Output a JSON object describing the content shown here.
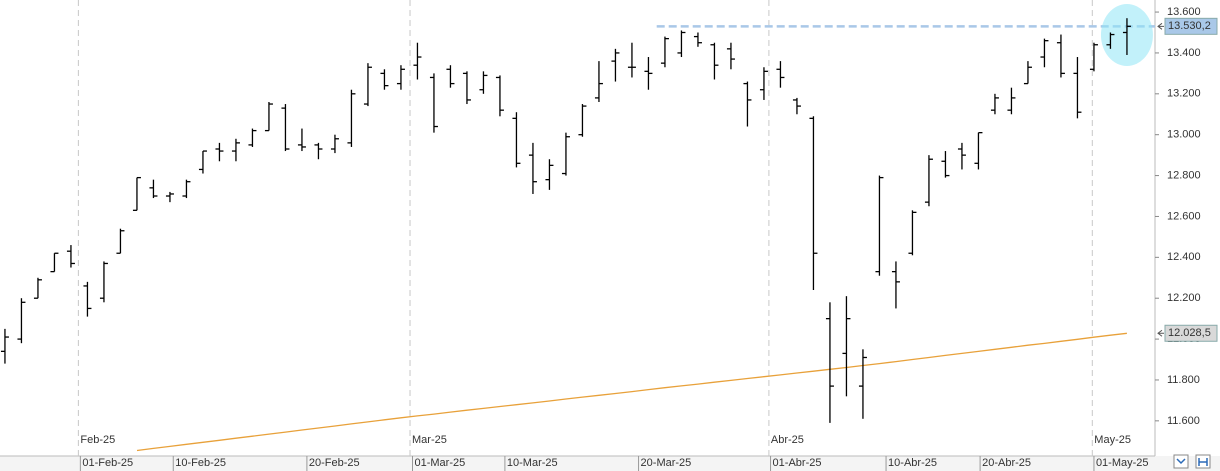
{
  "chart_data": {
    "type": "ohlc",
    "open": [
      11940,
      12000,
      12200,
      12330,
      12430,
      12260,
      12200,
      12420,
      12630,
      12740,
      12700,
      12700,
      12830,
      12930,
      12920,
      12950,
      13020,
      13130,
      12950,
      12950,
      12930,
      12960,
      13150,
      13300,
      13250,
      13340,
      13280,
      13320,
      13300,
      13220,
      13280,
      13080,
      12900,
      12780,
      12810,
      13000,
      13180,
      13360,
      13330,
      13310,
      13350,
      13400,
      13480,
      13440,
      13420,
      13250,
      13220,
      13320,
      13170,
      13080,
      12100,
      11930,
      11770,
      12330,
      12330,
      12420,
      12670,
      12870,
      12930,
      12860,
      13120,
      13120,
      13250,
      13380,
      13450,
      13300,
      13320,
      13440,
      13500
    ],
    "high": [
      12050,
      12200,
      12300,
      12420,
      12460,
      12280,
      12380,
      12540,
      12790,
      12780,
      12720,
      12780,
      12920,
      12960,
      12980,
      13030,
      13160,
      13150,
      13030,
      12960,
      13000,
      13220,
      13350,
      13320,
      13340,
      13450,
      13300,
      13340,
      13310,
      13310,
      13290,
      13110,
      12960,
      12880,
      13010,
      13150,
      13360,
      13420,
      13450,
      13380,
      13480,
      13510,
      13500,
      13450,
      13450,
      13260,
      13330,
      13360,
      13180,
      13090,
      12180,
      12210,
      11950,
      12800,
      12380,
      12630,
      12900,
      12920,
      12960,
      13010,
      13200,
      13230,
      13360,
      13470,
      13490,
      13380,
      13450,
      13500,
      13570
    ],
    "low": [
      11880,
      11980,
      12200,
      12330,
      12350,
      12110,
      12180,
      12420,
      12630,
      12690,
      12670,
      12690,
      12810,
      12870,
      12870,
      12940,
      13020,
      12920,
      12920,
      12880,
      12910,
      12940,
      13140,
      13220,
      13220,
      13270,
      13010,
      13230,
      13150,
      13200,
      13090,
      12840,
      12710,
      12730,
      12800,
      12990,
      13160,
      13260,
      13280,
      13220,
      13330,
      13380,
      13430,
      13270,
      13320,
      13040,
      13170,
      13230,
      13100,
      12240,
      11590,
      11720,
      11610,
      12310,
      12150,
      12410,
      12650,
      12790,
      12830,
      12830,
      13100,
      13100,
      13250,
      13330,
      13280,
      13080,
      13310,
      13420,
      13390
    ],
    "close": [
      12010,
      12180,
      12290,
      12420,
      12370,
      12150,
      12370,
      12530,
      12790,
      12700,
      12710,
      12770,
      12920,
      12920,
      12960,
      13020,
      13150,
      12930,
      12940,
      12930,
      12980,
      13200,
      13330,
      13240,
      13320,
      13380,
      13040,
      13250,
      13170,
      13290,
      13120,
      12860,
      12770,
      12850,
      12990,
      13140,
      13250,
      13400,
      13330,
      13300,
      13470,
      13500,
      13450,
      13340,
      13370,
      13170,
      13310,
      13280,
      13140,
      12420,
      11770,
      12100,
      11910,
      12790,
      12280,
      12620,
      12880,
      12800,
      12900,
      13010,
      13180,
      13180,
      13330,
      13460,
      13300,
      13110,
      13440,
      13490,
      13530.2
    ],
    "color": "#000000",
    "ma": {
      "color": "#e8a13a",
      "values": [
        null,
        null,
        null,
        null,
        null,
        null,
        null,
        null,
        11455,
        11465,
        11475,
        11485,
        11495,
        11505,
        11515,
        11525,
        11535,
        11545,
        11555,
        11565,
        11575,
        11585,
        11595,
        11605,
        11615,
        11624,
        11633,
        11643,
        11652,
        11661,
        11670,
        11679,
        11688,
        11697,
        11707,
        11716,
        11725,
        11734,
        11743,
        11753,
        11762,
        11771,
        11780,
        11789,
        11798,
        11807,
        11816,
        11825,
        11834,
        11843,
        11852,
        11861,
        11871,
        11880,
        11890,
        11900,
        11910,
        11920,
        11930,
        11940,
        11950,
        11960,
        11970,
        11979,
        11989,
        11999,
        12009,
        12019,
        12028.5
      ]
    },
    "xlim": [
      -0.3,
      69.7
    ],
    "xticks": [
      {
        "value": 4.57,
        "label": "01-Feb-25"
      },
      {
        "value": 10.2,
        "label": "10-Feb-25"
      },
      {
        "value": 18.3,
        "label": "20-Feb-25"
      },
      {
        "value": 24.7,
        "label": "01-Mar-25"
      },
      {
        "value": 30.3,
        "label": "10-Mar-25"
      },
      {
        "value": 38.4,
        "label": "20-Mar-25"
      },
      {
        "value": 46.4,
        "label": "01-Abr-25"
      },
      {
        "value": 53.4,
        "label": "10-Abr-25"
      },
      {
        "value": 59.1,
        "label": "20-Abr-25"
      },
      {
        "value": 66.0,
        "label": "01-May-25"
      }
    ],
    "month_ticks": [
      {
        "value": 4.45,
        "label": "Feb-25"
      },
      {
        "value": 24.55,
        "label": "Mar-25"
      },
      {
        "value": 46.3,
        "label": "Abr-25"
      },
      {
        "value": 65.9,
        "label": "May-25"
      }
    ],
    "ylim": [
      11428,
      13659
    ],
    "yticks": [
      {
        "value": 11600,
        "label": "11.600"
      },
      {
        "value": 11800,
        "label": "11.800"
      },
      {
        "value": 12000,
        "label": "12.000"
      },
      {
        "value": 12200,
        "label": "12.200"
      },
      {
        "value": 12400,
        "label": "12.400"
      },
      {
        "value": 12600,
        "label": "12.600"
      },
      {
        "value": 12800,
        "label": "12.800"
      },
      {
        "value": 13000,
        "label": "13.000"
      },
      {
        "value": 13200,
        "label": "13.200"
      },
      {
        "value": 13400,
        "label": "13.400"
      },
      {
        "value": 13600,
        "label": "13.600"
      }
    ],
    "markers": [
      {
        "value": 13530.2,
        "label": "13.530,2",
        "color": "#a9c8e8"
      },
      {
        "value": 12028.5,
        "label": "12.028,5",
        "color": "#d9d9d9"
      }
    ],
    "highlight_line": {
      "value": 13530.2,
      "color": "#a9c8e8",
      "from": 39.5
    }
  }
}
